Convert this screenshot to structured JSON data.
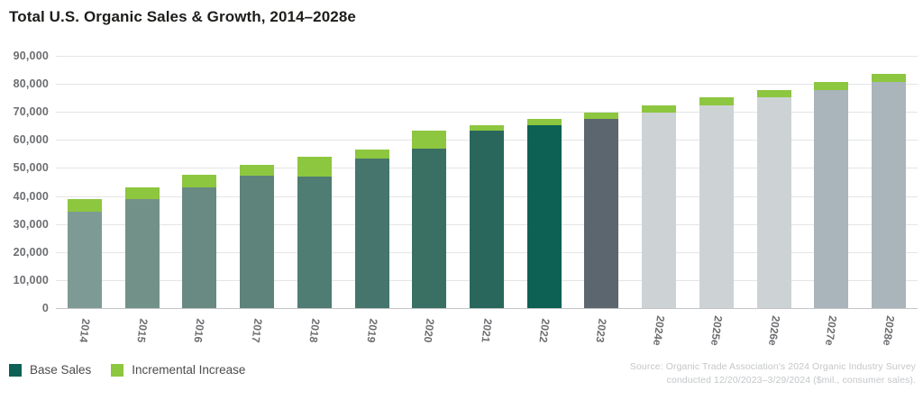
{
  "title": "Total U.S. Organic Sales & Growth, 2014–2028e",
  "y_axis": {
    "tick_labels": [
      "90,000",
      "80,000",
      "70,000",
      "60,000",
      "50,000",
      "40,000",
      "30,000",
      "20,000",
      "10,000",
      "0"
    ]
  },
  "legend": {
    "items": [
      {
        "label": "Base Sales",
        "color": "#0C6154"
      },
      {
        "label": "Incremental Increase",
        "color": "#8DC63F"
      }
    ]
  },
  "source": {
    "line1": "Source: Organic Trade Association's 2024 Organic Industry Survey",
    "line2": "conducted 12/20/2023–3/29/2024 ($mil., consumer sales)."
  },
  "chart_data": {
    "type": "bar",
    "stacked": true,
    "title": "Total U.S. Organic Sales & Growth, 2014–2028e",
    "categories": [
      "2014",
      "2015",
      "2016",
      "2017",
      "2018",
      "2019",
      "2020",
      "2021",
      "2022",
      "2023",
      "2024e",
      "2025e",
      "2026e",
      "2027e",
      "2028e"
    ],
    "series": [
      {
        "name": "Base Sales",
        "values": [
          34400,
          38800,
          43100,
          47100,
          46800,
          53500,
          56900,
          63400,
          65200,
          67600,
          69700,
          72400,
          75300,
          77900,
          80800
        ]
      },
      {
        "name": "Incremental Increase",
        "values": [
          4400,
          4300,
          4400,
          4000,
          7100,
          3100,
          6500,
          1800,
          2400,
          2100,
          2700,
          2900,
          2600,
          2900,
          2700
        ]
      }
    ],
    "totals": [
      38800,
      43100,
      47500,
      51100,
      53900,
      56600,
      63400,
      65200,
      67600,
      69700,
      72400,
      75300,
      77900,
      80800,
      83500
    ],
    "ylim": [
      0,
      90000
    ],
    "grid": "horizontal lines every 10,000",
    "legend_position": "bottom-left",
    "units": "$mil., consumer sales",
    "bar_colors": [
      "#7E9A95",
      "#729289",
      "#688A82",
      "#5D837B",
      "#4F7C73",
      "#45756C",
      "#3A6F64",
      "#29675C",
      "#0C6154",
      "#5C666F",
      "#CDD3D4",
      "#CDD3D4",
      "#CDD3D4",
      "#A9B5BA",
      "#A9B5BA"
    ],
    "incremental_color": "#8DC63F"
  }
}
